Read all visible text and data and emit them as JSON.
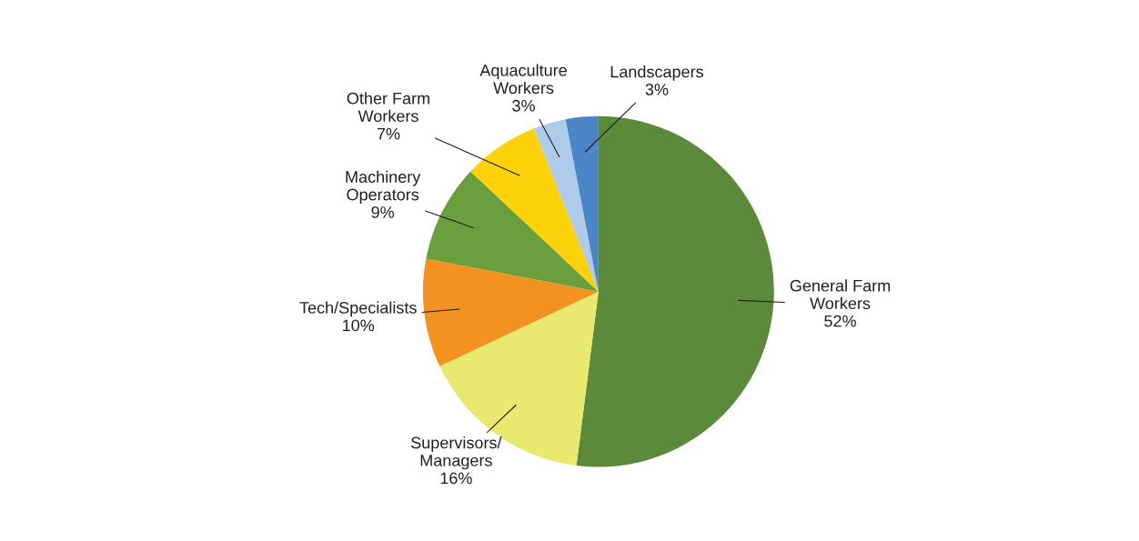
{
  "chart_data": {
    "type": "pie",
    "categories": [
      "General Farm Workers",
      "Supervisors/ Managers",
      "Tech/Specialists",
      "Machinery Operators",
      "Other Farm Workers",
      "Aquaculture Workers",
      "Landscapers"
    ],
    "values": [
      52,
      16,
      10,
      9,
      7,
      3,
      3
    ],
    "value_labels": [
      "52%",
      "16%",
      "10%",
      "9%",
      "7%",
      "3%",
      "3%"
    ],
    "colors": [
      "#5b8a3a",
      "#e8e96e",
      "#f39220",
      "#6b9e3c",
      "#fdd20a",
      "#aecbeb",
      "#4a86c8"
    ],
    "legend": false
  }
}
